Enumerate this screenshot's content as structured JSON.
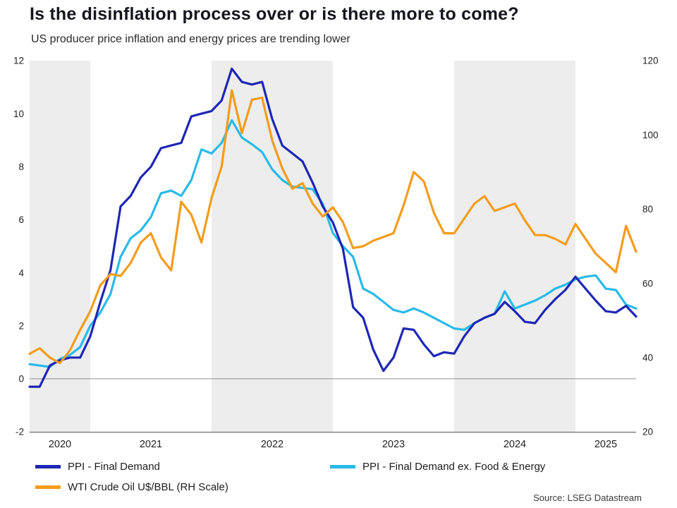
{
  "page": {
    "source": "Source: LSEG Datastream"
  },
  "colors": {
    "ppi": "#1e27b4",
    "core_ppi": "#29bae8",
    "wti": "#f59c1c",
    "band": "#ededed",
    "zero_line": "#909090",
    "axis_line": "#555555",
    "text": "#222222"
  },
  "chart_data": {
    "type": "line",
    "title": "Is the disinflation process over or is there more to come?",
    "subtitle": "US producer price inflation and energy prices are trending lower",
    "grid": false,
    "legend_position": "bottom",
    "months": [
      "2020-07",
      "2020-08",
      "2020-09",
      "2020-10",
      "2020-11",
      "2020-12",
      "2021-01",
      "2021-02",
      "2021-03",
      "2021-04",
      "2021-05",
      "2021-06",
      "2021-07",
      "2021-08",
      "2021-09",
      "2021-10",
      "2021-11",
      "2021-12",
      "2022-01",
      "2022-02",
      "2022-03",
      "2022-04",
      "2022-05",
      "2022-06",
      "2022-07",
      "2022-08",
      "2022-09",
      "2022-10",
      "2022-11",
      "2022-12",
      "2023-01",
      "2023-02",
      "2023-03",
      "2023-04",
      "2023-05",
      "2023-06",
      "2023-07",
      "2023-08",
      "2023-09",
      "2023-10",
      "2023-11",
      "2023-12",
      "2024-01",
      "2024-02",
      "2024-03",
      "2024-04",
      "2024-05",
      "2024-06",
      "2024-07",
      "2024-08",
      "2024-09",
      "2024-10",
      "2024-11",
      "2024-12",
      "2025-01",
      "2025-02",
      "2025-03",
      "2025-04",
      "2025-05",
      "2025-06",
      "2025-07"
    ],
    "year_labels": [
      "2020",
      "2021",
      "2022",
      "2023",
      "2024",
      "2025"
    ],
    "shaded_years": [
      "2020",
      "2022",
      "2024"
    ],
    "left_axis": {
      "min": -2,
      "max": 12,
      "ticks": [
        12,
        10,
        8,
        6,
        4,
        2,
        0,
        -2
      ]
    },
    "right_axis": {
      "min": 20,
      "max": 120,
      "ticks": [
        120,
        100,
        80,
        60,
        40,
        20
      ]
    },
    "series": [
      {
        "key": "ppi",
        "name": "PPI - Final Demand",
        "axis": "left",
        "color_key": "ppi",
        "values": [
          -0.3,
          -0.3,
          0.5,
          0.7,
          0.8,
          0.8,
          1.6,
          2.9,
          4.1,
          6.5,
          6.9,
          7.6,
          8.0,
          8.7,
          8.8,
          8.9,
          9.9,
          10.0,
          10.1,
          10.5,
          11.7,
          11.2,
          11.1,
          11.2,
          9.8,
          8.8,
          8.5,
          8.2,
          7.4,
          6.5,
          5.9,
          4.9,
          2.7,
          2.3,
          1.1,
          0.3,
          0.8,
          1.9,
          1.85,
          1.3,
          0.85,
          1.0,
          0.95,
          1.6,
          2.1,
          2.3,
          2.45,
          2.9,
          2.55,
          2.15,
          2.1,
          2.6,
          3.0,
          3.35,
          3.85,
          3.4,
          2.95,
          2.55,
          2.5,
          2.75,
          2.35
        ]
      },
      {
        "key": "core-ppi",
        "name": "PPI - Final Demand ex. Food & Energy",
        "axis": "left",
        "color_key": "core_ppi",
        "values": [
          0.55,
          0.5,
          0.45,
          0.75,
          0.9,
          1.2,
          2.0,
          2.5,
          3.2,
          4.6,
          5.3,
          5.6,
          6.1,
          7.0,
          7.1,
          6.9,
          7.5,
          8.65,
          8.5,
          8.9,
          9.75,
          9.1,
          8.85,
          8.55,
          7.9,
          7.5,
          7.25,
          7.2,
          7.15,
          6.6,
          5.5,
          5.0,
          4.6,
          3.4,
          3.2,
          2.9,
          2.6,
          2.5,
          2.65,
          2.5,
          2.3,
          2.1,
          1.9,
          1.85,
          2.1,
          2.3,
          2.45,
          3.3,
          2.65,
          2.8,
          2.95,
          3.15,
          3.4,
          3.55,
          3.75,
          3.85,
          3.9,
          3.4,
          3.35,
          2.8,
          2.65
        ]
      },
      {
        "key": "wti",
        "name": "WTI Crude Oil U$/BBL (RH Scale)",
        "axis": "right",
        "color_key": "wti",
        "values": [
          41,
          42.5,
          40,
          38.5,
          42,
          47.5,
          52.5,
          59.5,
          62.5,
          62,
          65.5,
          71,
          73.5,
          67,
          63.5,
          82,
          78.5,
          71,
          83,
          91.5,
          112,
          100.5,
          109.5,
          110,
          98.5,
          91,
          85.5,
          87,
          81.5,
          78,
          80.5,
          76.5,
          69.5,
          70,
          71.5,
          72.5,
          73.5,
          81,
          90,
          87.5,
          79,
          73.5,
          73.5,
          77.5,
          81.5,
          83.5,
          79.5,
          80.5,
          81.5,
          77,
          73,
          73,
          72,
          70.5,
          76,
          72,
          68,
          65.5,
          63,
          75.5,
          68.5
        ]
      }
    ]
  }
}
